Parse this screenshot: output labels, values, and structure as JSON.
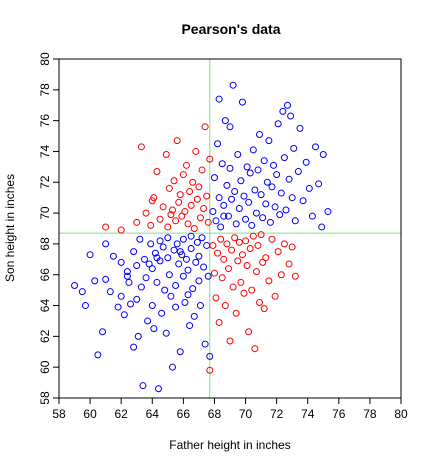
{
  "chart_data": {
    "type": "scatter",
    "title": "Pearson's data",
    "xlabel": "Father height in inches",
    "ylabel": "Son height in inches",
    "xlim": [
      58,
      80
    ],
    "ylim": [
      58,
      80
    ],
    "x_ticks": [
      58,
      60,
      62,
      64,
      66,
      68,
      70,
      72,
      74,
      76,
      78,
      80
    ],
    "y_ticks": [
      58,
      60,
      62,
      64,
      66,
      68,
      70,
      72,
      74,
      76,
      78,
      80
    ],
    "grid": false,
    "marker": "open-circle",
    "mean_father": 67.7,
    "mean_son": 68.7,
    "mean_line_color": "#7fe07f",
    "colors": {
      "same_side": "#0000ff",
      "opposite_side": "#ff0000"
    },
    "series": [
      {
        "color": "#0000ff",
        "points": [
          [
            59.0,
            65.3
          ],
          [
            59.5,
            64.9
          ],
          [
            59.7,
            64.0
          ],
          [
            60.0,
            67.3
          ],
          [
            60.3,
            65.6
          ],
          [
            60.5,
            60.8
          ],
          [
            60.8,
            62.3
          ],
          [
            61.0,
            65.7
          ],
          [
            61.0,
            68.0
          ],
          [
            61.3,
            64.9
          ],
          [
            61.5,
            67.2
          ],
          [
            61.8,
            63.9
          ],
          [
            62.0,
            66.8
          ],
          [
            62.0,
            64.6
          ],
          [
            62.2,
            63.4
          ],
          [
            62.4,
            66.2
          ],
          [
            62.5,
            65.5
          ],
          [
            62.6,
            64.1
          ],
          [
            62.8,
            67.5
          ],
          [
            62.8,
            61.3
          ],
          [
            63.0,
            66.6
          ],
          [
            63.0,
            64.4
          ],
          [
            63.1,
            62.0
          ],
          [
            63.2,
            68.3
          ],
          [
            63.3,
            65.2
          ],
          [
            63.4,
            58.8
          ],
          [
            63.5,
            67.0
          ],
          [
            63.6,
            65.8
          ],
          [
            63.7,
            63.0
          ],
          [
            63.9,
            68.0
          ],
          [
            64.0,
            66.4
          ],
          [
            64.0,
            64.0
          ],
          [
            64.1,
            62.5
          ],
          [
            64.2,
            67.4
          ],
          [
            64.3,
            65.5
          ],
          [
            64.4,
            58.6
          ],
          [
            64.5,
            68.2
          ],
          [
            64.5,
            66.9
          ],
          [
            64.6,
            63.5
          ],
          [
            64.7,
            67.8
          ],
          [
            64.8,
            65.0
          ],
          [
            64.9,
            62.2
          ],
          [
            65.0,
            68.4
          ],
          [
            65.0,
            67.1
          ],
          [
            65.1,
            66.0
          ],
          [
            65.2,
            64.6
          ],
          [
            65.3,
            60.0
          ],
          [
            65.4,
            67.6
          ],
          [
            65.5,
            65.3
          ],
          [
            65.5,
            63.9
          ],
          [
            65.6,
            68.0
          ],
          [
            65.7,
            66.7
          ],
          [
            65.8,
            61.0
          ],
          [
            65.9,
            67.3
          ],
          [
            66.0,
            68.3
          ],
          [
            66.0,
            65.9
          ],
          [
            66.1,
            64.2
          ],
          [
            66.2,
            67.0
          ],
          [
            66.3,
            66.3
          ],
          [
            66.4,
            62.7
          ],
          [
            66.5,
            68.5
          ],
          [
            66.5,
            67.7
          ],
          [
            66.6,
            65.1
          ],
          [
            66.7,
            63.3
          ],
          [
            66.8,
            66.8
          ],
          [
            66.9,
            68.1
          ],
          [
            67.0,
            67.2
          ],
          [
            67.0,
            65.6
          ],
          [
            67.1,
            64.0
          ],
          [
            67.2,
            68.4
          ],
          [
            67.3,
            66.5
          ],
          [
            67.4,
            61.5
          ],
          [
            67.5,
            67.9
          ],
          [
            67.6,
            65.9
          ],
          [
            67.7,
            60.7
          ],
          [
            64.3,
            67.1
          ],
          [
            65.8,
            67.5
          ],
          [
            63.8,
            66.7
          ],
          [
            66.3,
            64.7
          ],
          [
            62.4,
            65.9
          ],
          [
            67.9,
            70.1
          ],
          [
            68.0,
            72.3
          ],
          [
            68.1,
            69.5
          ],
          [
            68.2,
            74.5
          ],
          [
            68.3,
            71.0
          ],
          [
            68.4,
            69.1
          ],
          [
            68.5,
            73.2
          ],
          [
            68.6,
            70.5
          ],
          [
            68.7,
            76.0
          ],
          [
            68.8,
            71.8
          ],
          [
            68.9,
            69.8
          ],
          [
            69.0,
            72.9
          ],
          [
            69.1,
            70.9
          ],
          [
            69.2,
            78.3
          ],
          [
            69.3,
            71.4
          ],
          [
            69.4,
            69.3
          ],
          [
            69.5,
            73.8
          ],
          [
            69.6,
            70.3
          ],
          [
            69.7,
            72.1
          ],
          [
            69.8,
            77.2
          ],
          [
            69.9,
            71.1
          ],
          [
            70.0,
            69.6
          ],
          [
            70.1,
            73.0
          ],
          [
            70.2,
            70.7
          ],
          [
            70.3,
            72.6
          ],
          [
            70.4,
            69.2
          ],
          [
            70.5,
            74.1
          ],
          [
            70.6,
            71.5
          ],
          [
            70.7,
            70.0
          ],
          [
            70.8,
            72.8
          ],
          [
            70.9,
            75.1
          ],
          [
            71.0,
            71.2
          ],
          [
            71.1,
            69.7
          ],
          [
            71.2,
            73.4
          ],
          [
            71.3,
            70.6
          ],
          [
            71.4,
            72.0
          ],
          [
            71.5,
            74.7
          ],
          [
            71.6,
            69.4
          ],
          [
            71.7,
            71.7
          ],
          [
            71.8,
            73.1
          ],
          [
            71.9,
            70.4
          ],
          [
            72.0,
            72.5
          ],
          [
            72.1,
            75.8
          ],
          [
            72.2,
            69.9
          ],
          [
            72.3,
            71.3
          ],
          [
            72.4,
            76.6
          ],
          [
            72.5,
            73.6
          ],
          [
            72.6,
            70.2
          ],
          [
            72.7,
            77.0
          ],
          [
            72.8,
            72.2
          ],
          [
            73.0,
            71.0
          ],
          [
            73.1,
            74.2
          ],
          [
            73.2,
            69.5
          ],
          [
            73.4,
            72.7
          ],
          [
            73.5,
            75.5
          ],
          [
            73.7,
            70.8
          ],
          [
            73.9,
            73.3
          ],
          [
            74.1,
            71.6
          ],
          [
            74.3,
            69.8
          ],
          [
            74.5,
            74.3
          ],
          [
            74.7,
            71.9
          ],
          [
            74.9,
            69.1
          ],
          [
            75.0,
            73.8
          ],
          [
            75.3,
            70.1
          ],
          [
            68.6,
            69.8
          ],
          [
            69.0,
            75.6
          ],
          [
            68.3,
            77.4
          ],
          [
            72.9,
            76.3
          ]
        ]
      },
      {
        "color": "#ff0000",
        "points": [
          [
            61.0,
            69.1
          ],
          [
            62.0,
            68.9
          ],
          [
            63.0,
            69.4
          ],
          [
            63.3,
            74.3
          ],
          [
            63.6,
            70.0
          ],
          [
            63.9,
            69.2
          ],
          [
            64.1,
            71.0
          ],
          [
            64.3,
            72.7
          ],
          [
            64.5,
            69.6
          ],
          [
            64.7,
            70.4
          ],
          [
            64.9,
            73.8
          ],
          [
            65.0,
            69.1
          ],
          [
            65.1,
            71.6
          ],
          [
            65.3,
            70.2
          ],
          [
            65.4,
            72.1
          ],
          [
            65.5,
            69.5
          ],
          [
            65.6,
            74.7
          ],
          [
            65.7,
            70.7
          ],
          [
            65.8,
            71.2
          ],
          [
            65.9,
            69.8
          ],
          [
            66.0,
            72.5
          ],
          [
            66.1,
            70.1
          ],
          [
            66.2,
            73.1
          ],
          [
            66.3,
            69.3
          ],
          [
            66.4,
            71.4
          ],
          [
            66.5,
            70.5
          ],
          [
            66.6,
            72.0
          ],
          [
            66.7,
            69.0
          ],
          [
            66.8,
            74.0
          ],
          [
            66.9,
            70.9
          ],
          [
            67.0,
            71.7
          ],
          [
            67.1,
            69.7
          ],
          [
            67.2,
            72.8
          ],
          [
            67.3,
            70.3
          ],
          [
            67.4,
            75.6
          ],
          [
            67.5,
            71.1
          ],
          [
            67.6,
            69.4
          ],
          [
            67.7,
            73.5
          ],
          [
            64.0,
            70.8
          ],
          [
            65.2,
            69.9
          ],
          [
            67.9,
            67.9
          ],
          [
            68.0,
            66.1
          ],
          [
            68.1,
            64.5
          ],
          [
            68.2,
            67.4
          ],
          [
            68.3,
            62.9
          ],
          [
            68.4,
            68.3
          ],
          [
            68.5,
            65.8
          ],
          [
            68.6,
            67.0
          ],
          [
            68.7,
            64.0
          ],
          [
            68.8,
            68.0
          ],
          [
            68.9,
            66.4
          ],
          [
            69.0,
            61.7
          ],
          [
            69.1,
            67.6
          ],
          [
            69.2,
            65.2
          ],
          [
            69.3,
            68.4
          ],
          [
            69.4,
            63.5
          ],
          [
            69.5,
            66.9
          ],
          [
            69.6,
            68.1
          ],
          [
            69.7,
            65.5
          ],
          [
            69.8,
            67.3
          ],
          [
            69.9,
            64.8
          ],
          [
            70.0,
            68.2
          ],
          [
            70.1,
            66.6
          ],
          [
            70.2,
            62.3
          ],
          [
            70.3,
            67.7
          ],
          [
            70.4,
            65.0
          ],
          [
            70.5,
            68.5
          ],
          [
            70.6,
            61.2
          ],
          [
            70.7,
            66.2
          ],
          [
            70.8,
            67.9
          ],
          [
            70.9,
            64.2
          ],
          [
            71.0,
            68.6
          ],
          [
            71.1,
            66.8
          ],
          [
            71.2,
            63.8
          ],
          [
            71.3,
            67.1
          ],
          [
            71.5,
            65.6
          ],
          [
            71.7,
            68.3
          ],
          [
            71.9,
            64.6
          ],
          [
            72.1,
            67.5
          ],
          [
            72.3,
            66.0
          ],
          [
            72.5,
            68.0
          ],
          [
            72.8,
            66.7
          ],
          [
            73.0,
            67.8
          ],
          [
            73.2,
            65.9
          ],
          [
            67.7,
            59.8
          ]
        ]
      }
    ]
  }
}
